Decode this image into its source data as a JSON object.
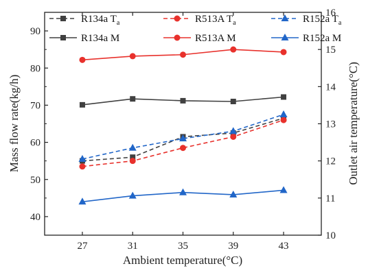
{
  "chart_data": {
    "type": "line",
    "x": [
      27,
      31,
      35,
      39,
      43
    ],
    "xlabel": "Ambient temperature(°C)",
    "ylabel_left": "Mass flow rate(kg/h)",
    "ylabel_right": "Outlet air temperature(°C)",
    "x_ticks": [
      "27",
      "31",
      "35",
      "39",
      "43"
    ],
    "y_left_ticks": [
      "40",
      "50",
      "60",
      "70",
      "80",
      "90"
    ],
    "y_right_ticks": [
      "10",
      "11",
      "12",
      "13",
      "14",
      "15",
      "16"
    ],
    "xlim": [
      24,
      46
    ],
    "ylim_left": [
      35,
      95
    ],
    "ylim_right": [
      10,
      16
    ],
    "grid": false,
    "legend_position": "top",
    "series": [
      {
        "name": "R134a T",
        "name_sub": "a",
        "axis": "right",
        "style": "dashed",
        "marker": "square",
        "color": "#404040",
        "values": [
          12.0,
          12.1,
          12.65,
          12.75,
          13.15
        ]
      },
      {
        "name": "R513A T",
        "name_sub": "a",
        "axis": "right",
        "style": "dashed",
        "marker": "circle",
        "color": "#e8312c",
        "values": [
          11.85,
          12.0,
          12.35,
          12.65,
          13.1
        ]
      },
      {
        "name": "R152a T",
        "name_sub": "a",
        "axis": "right",
        "style": "dashed",
        "marker": "triangle",
        "color": "#2166c8",
        "values": [
          12.05,
          12.35,
          12.6,
          12.8,
          13.25
        ]
      },
      {
        "name": "R134a M",
        "axis": "left",
        "style": "solid",
        "marker": "square",
        "color": "#404040",
        "values": [
          70.1,
          71.7,
          71.2,
          71.0,
          72.2
        ]
      },
      {
        "name": "R513A M",
        "axis": "left",
        "style": "solid",
        "marker": "circle",
        "color": "#e8312c",
        "values": [
          82.2,
          83.2,
          83.6,
          85.0,
          84.3
        ]
      },
      {
        "name": "R152a M",
        "axis": "left",
        "style": "solid",
        "marker": "triangle",
        "color": "#2166c8",
        "values": [
          44.0,
          45.6,
          46.5,
          45.9,
          47.1
        ]
      }
    ]
  }
}
